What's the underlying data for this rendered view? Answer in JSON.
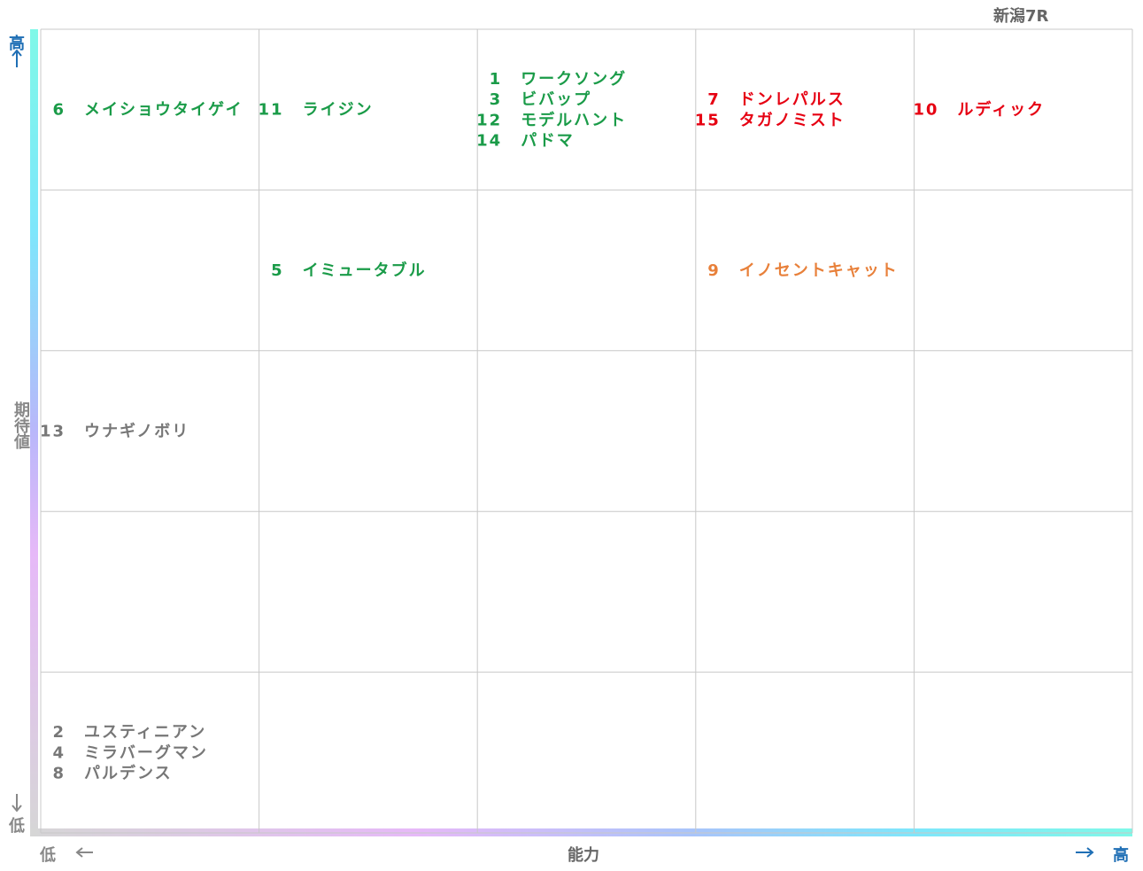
{
  "header": {
    "title": "新潟7R"
  },
  "y_axis": {
    "label": "期待値",
    "high": "高",
    "low": "低"
  },
  "x_axis": {
    "label": "能力",
    "high": "高",
    "low": "低"
  },
  "grid": {
    "rows": [
      [
        [
          {
            "number": 6,
            "name": "メイショウタイゲイ",
            "color": "#1a9b48"
          }
        ],
        [
          {
            "number": 11,
            "name": "ライジン",
            "color": "#1a9b48"
          }
        ],
        [
          {
            "number": 1,
            "name": "ワークソング",
            "color": "#1a9b48"
          },
          {
            "number": 3,
            "name": "ビバップ",
            "color": "#1a9b48"
          },
          {
            "number": 12,
            "name": "モデルハント",
            "color": "#1a9b48"
          },
          {
            "number": 14,
            "name": "パドマ",
            "color": "#1a9b48"
          }
        ],
        [
          {
            "number": 7,
            "name": "ドンレパルス",
            "color": "#e60012"
          },
          {
            "number": 15,
            "name": "タガノミスト",
            "color": "#e60012"
          }
        ],
        [
          {
            "number": 10,
            "name": "ルディック",
            "color": "#e60012"
          }
        ]
      ],
      [
        [],
        [
          {
            "number": 5,
            "name": "イミュータブル",
            "color": "#1a9b48"
          }
        ],
        [],
        [
          {
            "number": 9,
            "name": "イノセントキャット",
            "color": "#e8803a"
          }
        ],
        []
      ],
      [
        [
          {
            "number": 13,
            "name": "ウナギノボリ",
            "color": "#777777"
          }
        ],
        [],
        [],
        [],
        []
      ],
      [
        [],
        [],
        [],
        [],
        []
      ],
      [
        [
          {
            "number": 2,
            "name": "ユスティニアン",
            "color": "#777777"
          },
          {
            "number": 4,
            "name": "ミラバーグマン",
            "color": "#777777"
          },
          {
            "number": 8,
            "name": "パルデンス",
            "color": "#777777"
          }
        ],
        [],
        [],
        [],
        []
      ]
    ]
  }
}
